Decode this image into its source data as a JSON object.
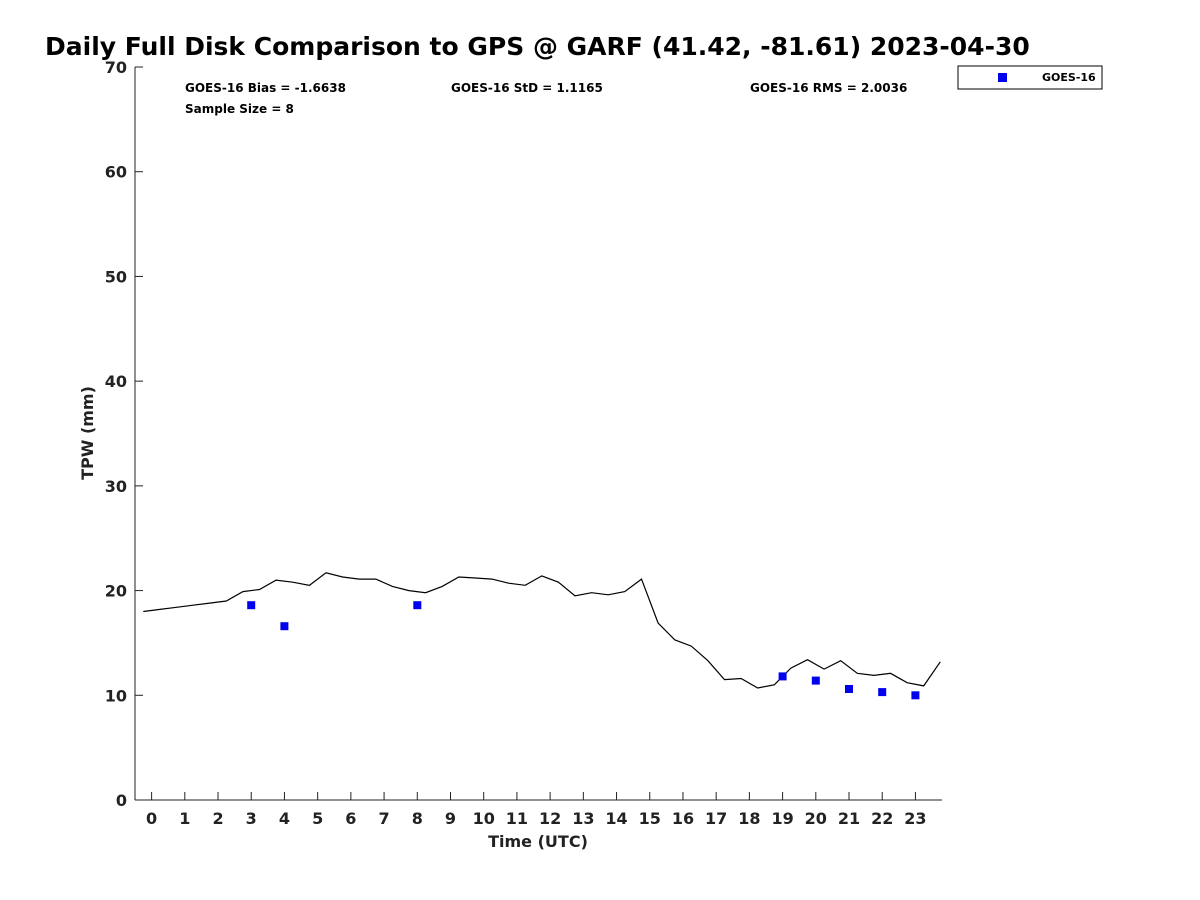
{
  "chart_data": {
    "type": "scatter",
    "title": "Daily Full Disk Comparison to GPS @ GARF (41.42, -81.61) 2023-04-30",
    "xlabel": "Time (UTC)",
    "ylabel": "TPW (mm)",
    "xlim": [
      -0.5,
      23.8
    ],
    "ylim": [
      0,
      70
    ],
    "xticks": [
      0,
      1,
      2,
      3,
      4,
      5,
      6,
      7,
      8,
      9,
      10,
      11,
      12,
      13,
      14,
      15,
      16,
      17,
      18,
      19,
      20,
      21,
      22,
      23
    ],
    "yticks": [
      0,
      10,
      20,
      30,
      40,
      50,
      60,
      70
    ],
    "grid": false,
    "legend_position": "top-right outside",
    "stats": {
      "bias": "GOES-16 Bias = -1.6638",
      "std": "GOES-16 StD = 1.1165",
      "rms": "GOES-16 RMS = 2.0036",
      "sample": "Sample Size = 8"
    },
    "gps_line": {
      "color": "#000000",
      "x": [
        -0.25,
        0.25,
        0.75,
        1.25,
        1.75,
        2.25,
        2.75,
        3.25,
        3.75,
        4.25,
        4.75,
        5.25,
        5.75,
        6.25,
        6.75,
        7.25,
        7.75,
        8.25,
        8.75,
        9.25,
        9.75,
        10.25,
        10.75,
        11.25,
        11.75,
        12.25,
        12.75,
        13.25,
        13.75,
        14.25,
        14.75,
        15.25,
        15.75,
        16.25,
        16.75,
        17.25,
        17.75,
        18.25,
        18.75,
        19.25,
        19.75,
        20.25,
        20.75,
        21.25,
        21.75,
        22.25,
        22.75,
        23.25,
        23.75
      ],
      "y": [
        18.0,
        18.2,
        18.4,
        18.6,
        18.8,
        19.0,
        19.9,
        20.1,
        21.0,
        20.8,
        20.5,
        21.7,
        21.3,
        21.1,
        21.1,
        20.4,
        20.0,
        19.8,
        20.4,
        21.3,
        21.2,
        21.1,
        20.7,
        20.5,
        21.4,
        20.8,
        19.5,
        19.8,
        19.6,
        19.9,
        21.1,
        16.9,
        15.3,
        14.7,
        13.3,
        11.5,
        11.6,
        10.7,
        11.0,
        12.6,
        13.4,
        12.5,
        13.3,
        12.1,
        11.9,
        12.1,
        11.2,
        10.9,
        13.2
      ]
    },
    "series": [
      {
        "name": "GOES-16",
        "color": "#0000ee",
        "marker": "square",
        "x": [
          3,
          4,
          8,
          19,
          20,
          21,
          22,
          23
        ],
        "y": [
          18.6,
          16.6,
          18.6,
          11.8,
          11.4,
          10.6,
          10.3,
          10.0
        ]
      }
    ]
  }
}
